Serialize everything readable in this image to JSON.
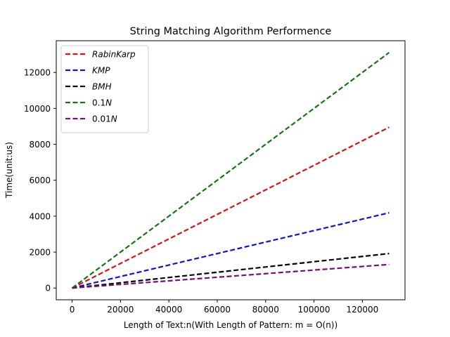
{
  "chart_data": {
    "type": "line",
    "title": "String Matching Algorithm Performence",
    "xlabel": "Length of Text:n(With Length of Pattern: m = O(n))",
    "ylabel": "Time(unit:us)",
    "xlim": [
      -6553.6,
      137625.6
    ],
    "ylim": [
      -655,
      13766
    ],
    "xticks": [
      0,
      20000,
      40000,
      60000,
      80000,
      100000,
      120000
    ],
    "xtick_labels": [
      "0",
      "20000",
      "40000",
      "60000",
      "80000",
      "100000",
      "120000"
    ],
    "yticks": [
      0,
      2000,
      4000,
      6000,
      8000,
      10000,
      12000
    ],
    "ytick_labels": [
      "0",
      "2000",
      "4000",
      "6000",
      "8000",
      "10000",
      "12000"
    ],
    "grid": false,
    "legend_position": "top-left",
    "series": [
      {
        "name": "RabinKarp",
        "name_italic": true,
        "prefix": "",
        "color": "#dd1111",
        "x": [
          0,
          131072
        ],
        "y": [
          0,
          8950
        ]
      },
      {
        "name": "KMP",
        "name_italic": true,
        "prefix": "",
        "color": "#1111dd",
        "x": [
          0,
          131072
        ],
        "y": [
          0,
          4190
        ]
      },
      {
        "name": "BMH",
        "name_italic": true,
        "prefix": "",
        "color": "#000000",
        "x": [
          0,
          131072
        ],
        "y": [
          0,
          1920
        ]
      },
      {
        "name": "N",
        "name_italic": true,
        "prefix": "0.1",
        "color": "#117711",
        "x": [
          0,
          131072
        ],
        "y": [
          0,
          13107
        ]
      },
      {
        "name": "N",
        "name_italic": true,
        "prefix": "0.01",
        "color": "#7a0d7a",
        "x": [
          0,
          131072
        ],
        "y": [
          0,
          1311
        ]
      }
    ]
  }
}
